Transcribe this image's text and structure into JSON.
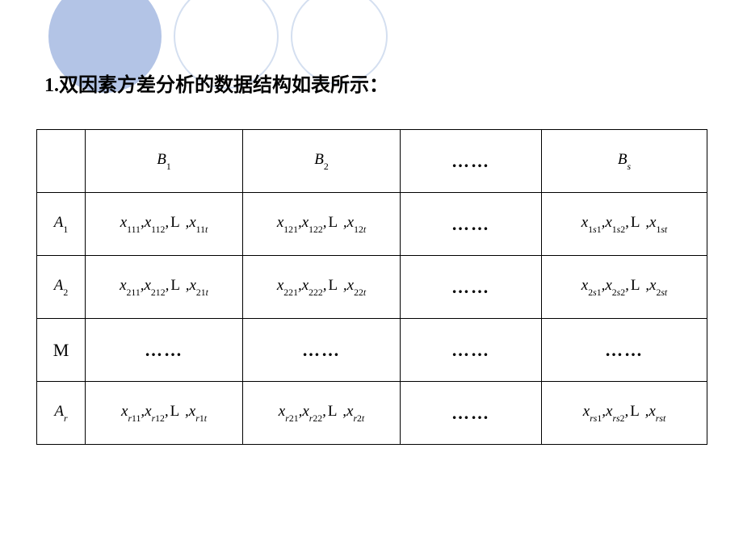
{
  "title_prefix": "1.",
  "title_text": "双因素方差分析的数据结构如表所示：",
  "dots": "……",
  "Lsym": "L",
  "Msym": "M",
  "colors": {
    "circle_fill": "#b3c4e6",
    "circle_stroke": "#d4dff0",
    "border": "#000000",
    "background": "#ffffff"
  },
  "table": {
    "col_headers": {
      "B1": {
        "sym": "B",
        "sub": "1"
      },
      "B2": {
        "sym": "B",
        "sub": "2"
      },
      "Bs": {
        "sym": "B",
        "sub": "s"
      }
    },
    "row_headers": {
      "A1": {
        "sym": "A",
        "sub": "1"
      },
      "A2": {
        "sym": "A",
        "sub": "2"
      },
      "Ar": {
        "sym": "A",
        "sub": "r"
      }
    },
    "cells": {
      "r1c1": {
        "s1": "111",
        "s2": "112",
        "s3a": "11",
        "s3b": "t"
      },
      "r1c2": {
        "s1": "121",
        "s2": "122",
        "s3a": "12",
        "s3b": "t"
      },
      "r1c4": {
        "s1a": "1",
        "s1b": "s",
        "s1c": "1",
        "s2a": "1",
        "s2b": "s",
        "s2c": "2",
        "s3a": "1",
        "s3b": "st"
      },
      "r2c1": {
        "s1": "211",
        "s2": "212",
        "s3a": "21",
        "s3b": "t"
      },
      "r2c2": {
        "s1": "221",
        "s2": "222",
        "s3a": "22",
        "s3b": "t"
      },
      "r2c4": {
        "s1a": "2",
        "s1b": "s",
        "s1c": "1",
        "s2a": "2",
        "s2b": "s",
        "s2c": "2",
        "s3a": "2",
        "s3b": "st"
      },
      "r4c1": {
        "s1a": "r",
        "s1b": "11",
        "s2a": "r",
        "s2b": "12",
        "s3a": "r",
        "s3b": "1",
        "s3c": "t"
      },
      "r4c2": {
        "s1a": "r",
        "s1b": "21",
        "s2a": "r",
        "s2b": "22",
        "s3a": "r",
        "s3b": "2",
        "s3c": "t"
      },
      "r4c4": {
        "s1a": "rs",
        "s1b": "1",
        "s2a": "rs",
        "s2b": "2",
        "s3": "rst"
      }
    }
  }
}
